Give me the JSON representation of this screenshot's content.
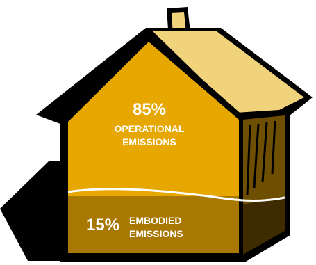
{
  "operational": {
    "percent": "85%",
    "line1": "OPERATIONAL",
    "line2": "EMISSIONS",
    "value": 85
  },
  "embodied": {
    "percent": "15%",
    "line1": "EMBODIED",
    "line2": "EMISSIONS",
    "value": 15
  },
  "colors": {
    "outline": "#000000",
    "front_upper": "#e6a700",
    "front_lower": "#a87800",
    "roof_side": "#f1d37c",
    "side_wall": "#6e4e00",
    "side_wall_lower": "#3e2b00",
    "chimney": "#f1d37c",
    "divider_line": "#ffffff",
    "label_text": "#ffffff"
  }
}
